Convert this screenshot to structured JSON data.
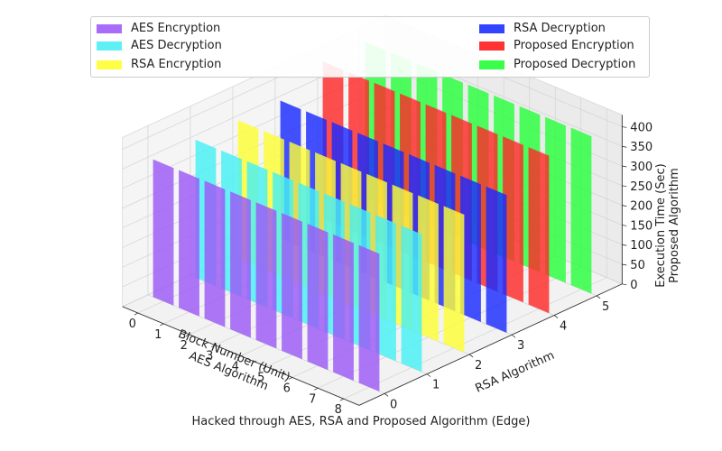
{
  "chart_data": {
    "type": "bar3d",
    "x_axis": {
      "label_line1": "Block Number (Unit)",
      "label_line2": "AES Algorithm",
      "ticks": [
        "0",
        "1",
        "2",
        "3",
        "4",
        "5",
        "6",
        "7",
        "8"
      ]
    },
    "y_axis": {
      "label": "RSA Algorithm",
      "ticks": [
        "0",
        "1",
        "2",
        "3",
        "4",
        "5"
      ]
    },
    "z_axis": {
      "label_line1": "Execution Time (Sec)",
      "label_line2": "Proposed Algorithm",
      "ticks": [
        "0",
        "50",
        "100",
        "150",
        "200",
        "250",
        "300",
        "350",
        "400"
      ],
      "range": [
        0,
        400
      ]
    },
    "categories": [
      0,
      1,
      2,
      3,
      4,
      5,
      6,
      7,
      8
    ],
    "series": [
      {
        "name": "AES Encryption",
        "color": "#9b59f6",
        "depth": 0,
        "values": [
          350,
          350,
          350,
          350,
          350,
          350,
          350,
          350,
          350
        ]
      },
      {
        "name": "AES Decryption",
        "color": "#47f0f5",
        "depth": 1,
        "values": [
          350,
          350,
          350,
          350,
          350,
          350,
          350,
          350,
          350
        ]
      },
      {
        "name": "RSA Encryption",
        "color": "#fefe37",
        "depth": 2,
        "values": [
          350,
          350,
          350,
          350,
          350,
          350,
          350,
          350,
          350
        ]
      },
      {
        "name": "RSA Decryption",
        "color": "#1a2bff",
        "depth": 3,
        "values": [
          350,
          350,
          350,
          350,
          350,
          350,
          350,
          350,
          350
        ]
      },
      {
        "name": "Proposed Encryption",
        "color": "#ff2a2a",
        "depth": 4,
        "values": [
          400,
          400,
          400,
          400,
          400,
          400,
          400,
          400,
          400
        ]
      },
      {
        "name": "Proposed Decryption",
        "color": "#28ff3c",
        "depth": 5,
        "values": [
          400,
          400,
          400,
          400,
          400,
          400,
          400,
          400,
          400
        ]
      }
    ],
    "grid": true,
    "legend_position": "top"
  },
  "caption": "Hacked through AES, RSA and Proposed Algorithm (Edge)"
}
